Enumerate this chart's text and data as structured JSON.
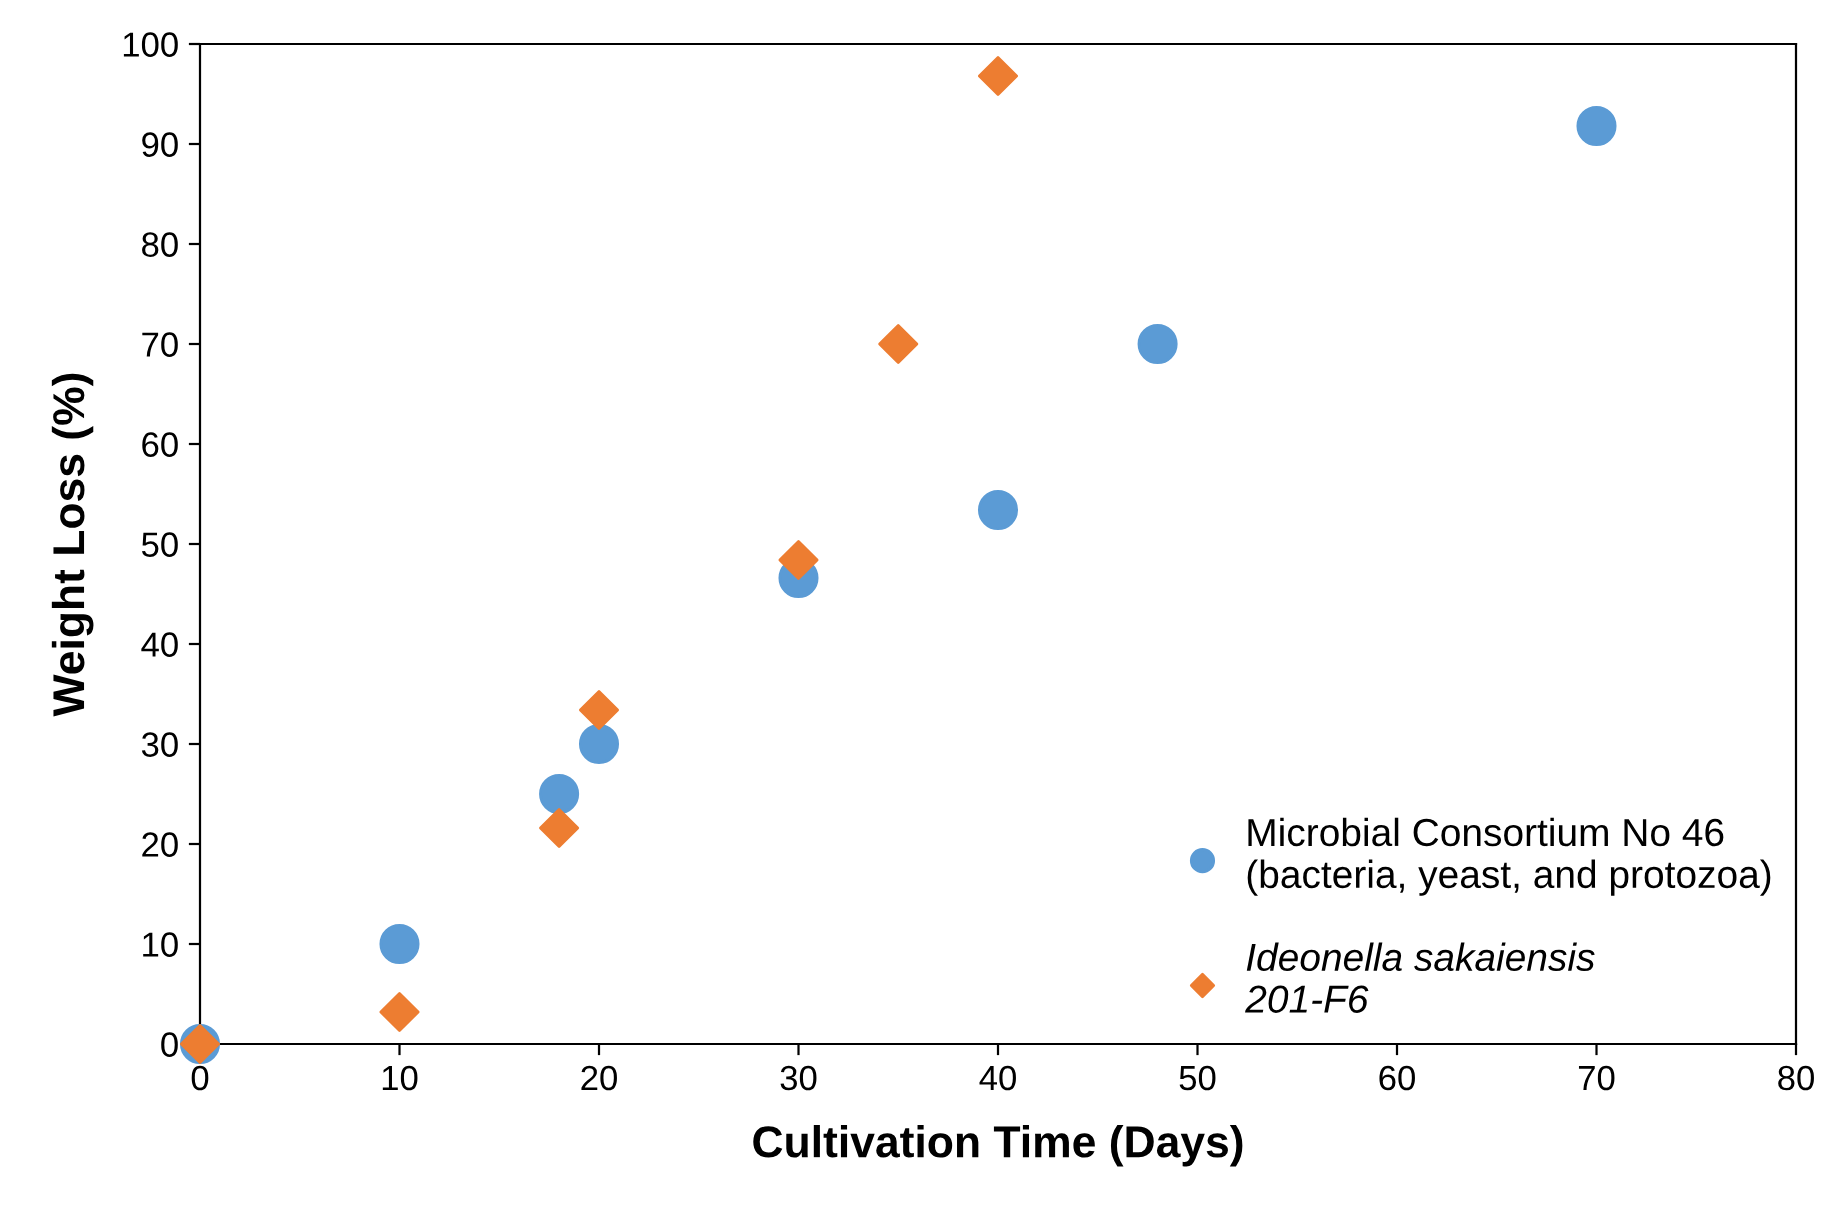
{
  "chart_data": {
    "type": "scatter",
    "xlabel": "Cultivation Time (Days)",
    "ylabel": "Weight Loss (%)",
    "xlim": [
      0,
      80
    ],
    "xticks": [
      0,
      10,
      20,
      30,
      40,
      50,
      60,
      70,
      80
    ],
    "ylim": [
      0,
      100
    ],
    "yticks": [
      0,
      10,
      20,
      30,
      40,
      50,
      60,
      70,
      80,
      90,
      100
    ],
    "grid": false,
    "legend": "bottom right",
    "series": [
      {
        "name": "Microbial Consortium No 46\n(bacteria, yeast, and protozoa)",
        "color": "#5b9bd5",
        "marker": "circle",
        "x": [
          0,
          10,
          18,
          20,
          30,
          40,
          48,
          70
        ],
        "values": [
          0,
          10,
          25,
          30,
          46.6,
          53.4,
          70,
          91.8
        ]
      },
      {
        "name": "Ideonella sakaiensis\n201-F6",
        "color": "#ed7d31",
        "marker": "diamond",
        "x": [
          0,
          10,
          18,
          20,
          30,
          35,
          40
        ],
        "values": [
          0,
          3.2,
          21.6,
          33.4,
          48.4,
          70,
          96.8
        ]
      }
    ]
  }
}
